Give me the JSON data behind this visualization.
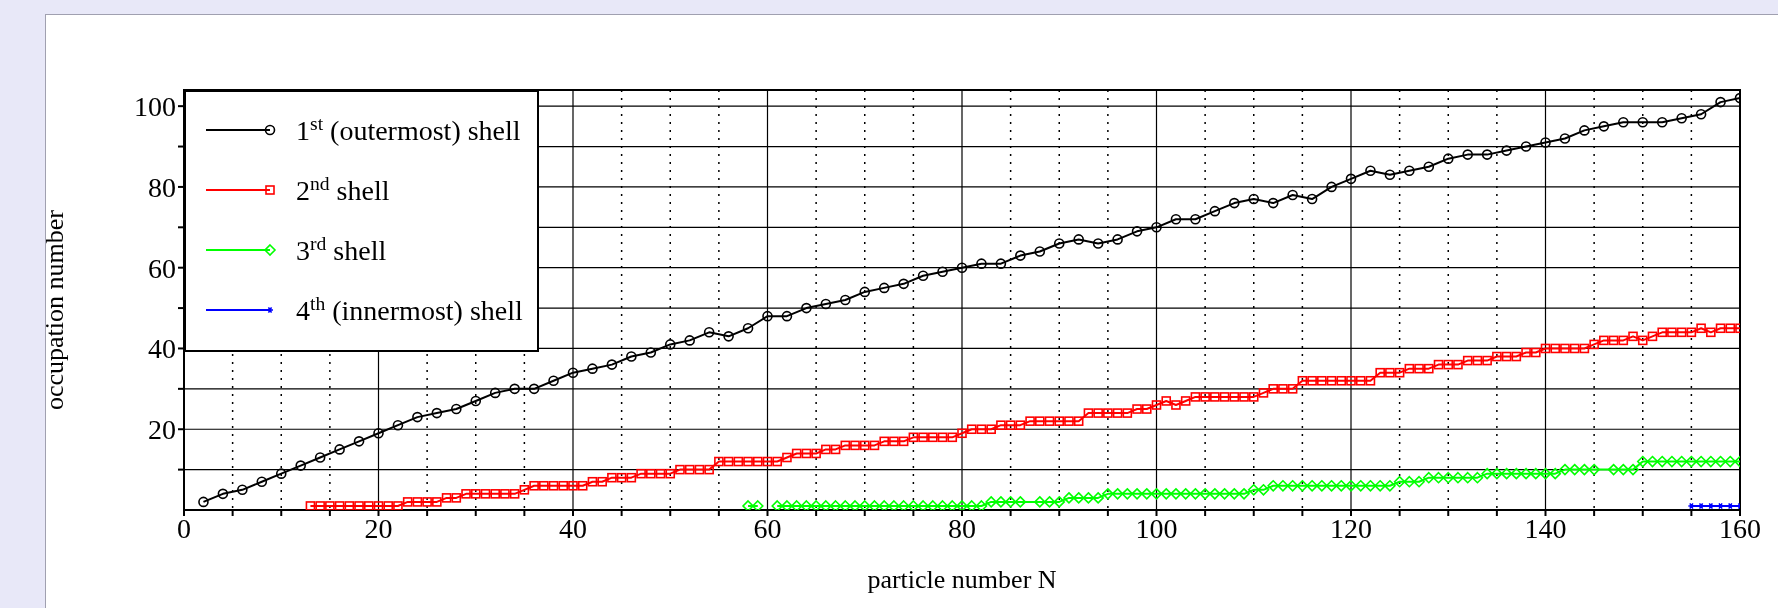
{
  "chart_data": {
    "type": "line",
    "xlabel": "particle number N",
    "ylabel": "occupation number",
    "xlim": [
      0,
      160
    ],
    "ylim": [
      0,
      104
    ],
    "xticks": [
      0,
      {
        "value": 5,
        "label": null
      },
      {
        "value": 10,
        "label": null
      },
      {
        "value": 15,
        "label": null
      },
      20,
      {
        "value": 25,
        "label": null
      },
      {
        "value": 30,
        "label": null
      },
      {
        "value": 35,
        "label": null
      },
      40,
      {
        "value": 45,
        "label": null
      },
      {
        "value": 50,
        "label": null
      },
      {
        "value": 55,
        "label": null
      },
      60,
      {
        "value": 65,
        "label": null
      },
      {
        "value": 70,
        "label": null
      },
      {
        "value": 75,
        "label": null
      },
      80,
      {
        "value": 85,
        "label": null
      },
      {
        "value": 90,
        "label": null
      },
      {
        "value": 95,
        "label": null
      },
      100,
      {
        "value": 105,
        "label": null
      },
      {
        "value": 110,
        "label": null
      },
      {
        "value": 115,
        "label": null
      },
      120,
      {
        "value": 125,
        "label": null
      },
      {
        "value": 130,
        "label": null
      },
      {
        "value": 135,
        "label": null
      },
      140,
      {
        "value": 145,
        "label": null
      },
      {
        "value": 150,
        "label": null
      },
      {
        "value": 155,
        "label": null
      },
      160
    ],
    "yticks": [
      {
        "value": 10,
        "label": null
      },
      20,
      {
        "value": 30,
        "label": null
      },
      40,
      {
        "value": 50,
        "label": null
      },
      60,
      {
        "value": 70,
        "label": null
      },
      80,
      {
        "value": 90,
        "label": null
      },
      100
    ],
    "grid": true,
    "legend": "top left",
    "line_style": "solid",
    "series": [
      {
        "name": "1$^{st}$ (outermost) shell",
        "color": "#000000",
        "marker": "circle",
        "x": [
          2,
          4,
          6,
          8,
          10,
          12,
          14,
          16,
          18,
          20,
          22,
          24,
          26,
          28,
          30,
          32,
          34,
          36,
          38,
          40,
          42,
          44,
          46,
          48,
          50,
          52,
          54,
          56,
          58,
          60,
          62,
          64,
          66,
          68,
          70,
          72,
          74,
          76,
          78,
          80,
          82,
          84,
          86,
          88,
          90,
          92,
          94,
          96,
          98,
          100,
          102,
          104,
          106,
          108,
          110,
          112,
          114,
          116,
          118,
          120,
          122,
          124,
          126,
          128,
          130,
          132,
          134,
          136,
          138,
          140,
          142,
          144,
          146,
          148,
          150,
          152,
          154,
          156,
          158,
          160
        ],
        "values": [
          2,
          4,
          5,
          7,
          9,
          11,
          13,
          15,
          17,
          19,
          21,
          23,
          24,
          25,
          27,
          29,
          30,
          30,
          32,
          34,
          35,
          36,
          38,
          39,
          41,
          42,
          44,
          43,
          45,
          48,
          48,
          50,
          51,
          52,
          54,
          55,
          56,
          58,
          59,
          60,
          61,
          61,
          63,
          64,
          66,
          67,
          66,
          67,
          69,
          70,
          72,
          72,
          74,
          76,
          77,
          76,
          78,
          77,
          80,
          82,
          84,
          83,
          84,
          85,
          87,
          88,
          88,
          89,
          90,
          91,
          92,
          94,
          95,
          96,
          96,
          96,
          97,
          98,
          101,
          102
        ]
      },
      {
        "name": "2$^{nd}$ shell",
        "color": "#ff0000",
        "marker": "square",
        "x": [
          13,
          14,
          15,
          16,
          17,
          18,
          19,
          20,
          21,
          22,
          23,
          24,
          25,
          26,
          27,
          28,
          29,
          30,
          31,
          32,
          33,
          34,
          35,
          36,
          37,
          38,
          39,
          40,
          41,
          42,
          43,
          44,
          45,
          46,
          47,
          48,
          49,
          50,
          51,
          52,
          53,
          54,
          55,
          56,
          57,
          58,
          59,
          60,
          61,
          62,
          63,
          64,
          65,
          66,
          67,
          68,
          69,
          70,
          71,
          72,
          73,
          74,
          75,
          76,
          77,
          78,
          79,
          80,
          81,
          82,
          83,
          84,
          85,
          86,
          87,
          88,
          89,
          90,
          91,
          92,
          93,
          94,
          95,
          96,
          97,
          98,
          99,
          100,
          101,
          102,
          103,
          104,
          105,
          106,
          107,
          108,
          109,
          110,
          111,
          112,
          113,
          114,
          115,
          116,
          117,
          118,
          119,
          120,
          121,
          122,
          123,
          124,
          125,
          126,
          127,
          128,
          129,
          130,
          131,
          132,
          133,
          134,
          135,
          136,
          137,
          138,
          139,
          140,
          141,
          142,
          143,
          144,
          145,
          146,
          147,
          148,
          149,
          150,
          151,
          152,
          153,
          154,
          155,
          156,
          157,
          158,
          159,
          160
        ],
        "values": [
          1,
          1,
          1,
          1,
          1,
          1,
          1,
          1,
          1,
          1,
          2,
          2,
          2,
          2,
          3,
          3,
          4,
          4,
          4,
          4,
          4,
          4,
          5,
          6,
          6,
          6,
          6,
          6,
          6,
          7,
          7,
          8,
          8,
          8,
          9,
          9,
          9,
          9,
          10,
          10,
          10,
          10,
          12,
          12,
          12,
          12,
          12,
          12,
          12,
          13,
          14,
          14,
          14,
          15,
          15,
          16,
          16,
          16,
          16,
          17,
          17,
          17,
          18,
          18,
          18,
          18,
          18,
          19,
          20,
          20,
          20,
          21,
          21,
          21,
          22,
          22,
          22,
          22,
          22,
          22,
          24,
          24,
          24,
          24,
          24,
          25,
          25,
          26,
          27,
          26,
          27,
          28,
          28,
          28,
          28,
          28,
          28,
          28,
          29,
          30,
          30,
          30,
          32,
          32,
          32,
          32,
          32,
          32,
          32,
          32,
          34,
          34,
          34,
          35,
          35,
          35,
          36,
          36,
          36,
          37,
          37,
          37,
          38,
          38,
          38,
          39,
          39,
          40,
          40,
          40,
          40,
          40,
          41,
          42,
          42,
          42,
          43,
          42,
          43,
          44,
          44,
          44,
          44,
          45,
          44,
          45,
          45,
          45
        ]
      },
      {
        "name": "3$^{rd}$ shell",
        "color": "#00ff00",
        "marker": "diamond",
        "x": [
          58,
          59,
          60,
          61,
          62,
          63,
          64,
          65,
          66,
          67,
          68,
          69,
          70,
          71,
          72,
          73,
          74,
          75,
          76,
          77,
          78,
          79,
          80,
          81,
          82,
          83,
          84,
          85,
          86,
          88,
          89,
          90,
          91,
          92,
          93,
          94,
          95,
          96,
          97,
          98,
          99,
          100,
          101,
          102,
          103,
          104,
          105,
          106,
          107,
          108,
          109,
          110,
          111,
          112,
          113,
          114,
          115,
          116,
          117,
          118,
          119,
          120,
          121,
          122,
          123,
          124,
          125,
          126,
          127,
          128,
          129,
          130,
          131,
          132,
          133,
          134,
          135,
          136,
          137,
          138,
          139,
          140,
          141,
          142,
          143,
          144,
          145,
          147,
          148,
          149,
          150,
          151,
          152,
          153,
          154,
          155,
          156,
          157,
          158,
          159,
          160
        ],
        "values": [
          1,
          1,
          null,
          1,
          1,
          1,
          1,
          1,
          1,
          1,
          1,
          1,
          1,
          1,
          1,
          1,
          1,
          1,
          1,
          1,
          1,
          1,
          1,
          1,
          1,
          2,
          2,
          2,
          2,
          2,
          2,
          2,
          3,
          3,
          3,
          3,
          4,
          4,
          4,
          4,
          4,
          4,
          4,
          4,
          4,
          4,
          4,
          4,
          4,
          4,
          4,
          5,
          5,
          6,
          6,
          6,
          6,
          6,
          6,
          6,
          6,
          6,
          6,
          6,
          6,
          6,
          7,
          7,
          7,
          8,
          8,
          8,
          8,
          8,
          8,
          9,
          9,
          9,
          9,
          9,
          9,
          9,
          9,
          10,
          10,
          10,
          10,
          10,
          10,
          10,
          12,
          12,
          12,
          12,
          12,
          12,
          12,
          12,
          12,
          12,
          12
        ]
      },
      {
        "name": "4$^{th}$ (innermost) shell",
        "color": "#0000ff",
        "marker": "cross",
        "x": [
          155,
          156,
          157,
          158,
          159,
          160
        ],
        "values": [
          1,
          1,
          1,
          1,
          1,
          1
        ]
      }
    ]
  }
}
